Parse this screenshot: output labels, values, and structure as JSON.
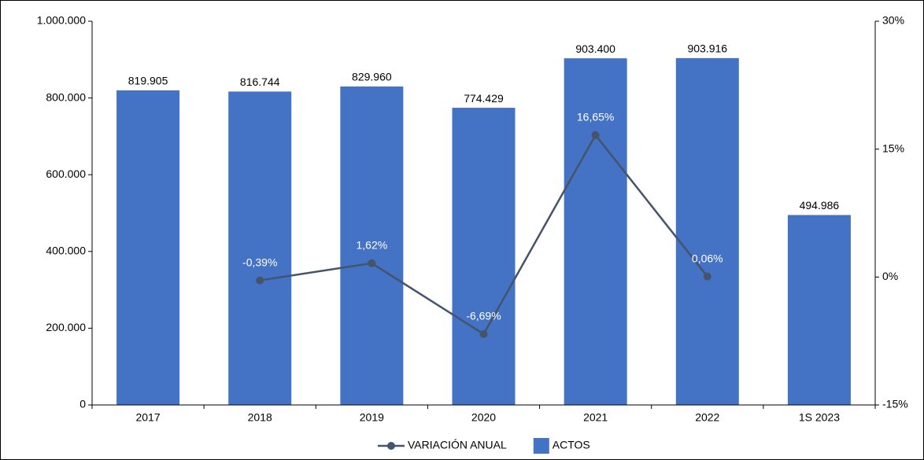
{
  "chart_data": {
    "type": "bar",
    "categories": [
      "2017",
      "2018",
      "2019",
      "2020",
      "2021",
      "2022",
      "1S 2023"
    ],
    "series": [
      {
        "name": "ACTOS",
        "type": "bar",
        "color": "#4472c4",
        "axis": "y",
        "values": [
          819905,
          816744,
          829960,
          774429,
          903400,
          903916,
          494986
        ],
        "value_labels": [
          "819.905",
          "816.744",
          "829.960",
          "774.429",
          "903.400",
          "903.916",
          "494.986"
        ]
      },
      {
        "name": "VARIACIÓN ANUAL",
        "type": "line",
        "color": "#44546a",
        "axis": "y2",
        "values": [
          null,
          -0.39,
          1.62,
          -6.69,
          16.65,
          0.06,
          null
        ],
        "value_labels": [
          null,
          "-0,39%",
          "1,62%",
          "-6,69%",
          "16,65%",
          "0,06%",
          null
        ]
      }
    ],
    "ylim": [
      0,
      1000000
    ],
    "yticks": [
      0,
      {
        "value": 200000,
        "label": "200.000"
      },
      {
        "value": 400000,
        "label": "400.000"
      },
      {
        "value": 600000,
        "label": "600.000"
      },
      {
        "value": 800000,
        "label": "800.000"
      },
      {
        "value": 1000000,
        "label": "1.000.000"
      }
    ],
    "y2lim": [
      -15,
      30
    ],
    "y2ticks": [
      {
        "value": -15,
        "label": "-15%"
      },
      {
        "value": 0,
        "label": "0%"
      },
      {
        "value": 15,
        "label": "15%"
      },
      {
        "value": 30,
        "label": "30%"
      }
    ],
    "legend": "bottom",
    "grid": false
  }
}
